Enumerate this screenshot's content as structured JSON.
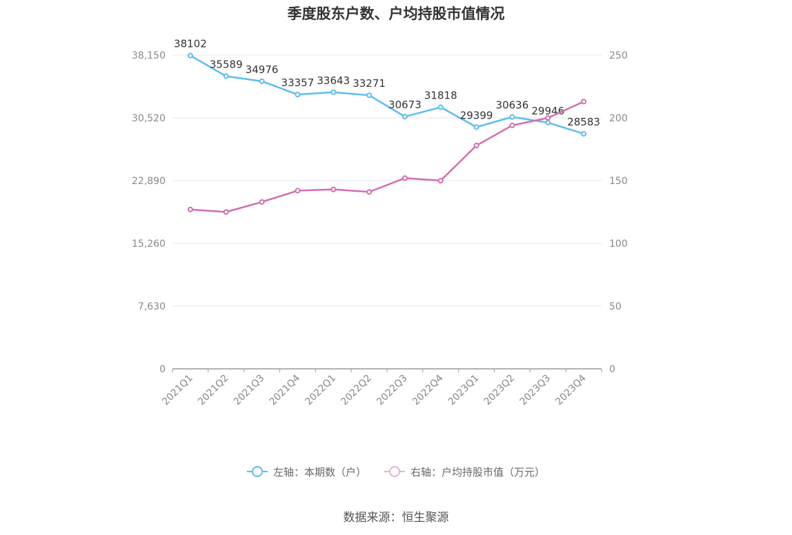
{
  "title": "季度股东户数、户均持股市值情况",
  "source": "数据来源：恒生聚源",
  "legend": {
    "left_label": "左轴：本期数（户）",
    "right_label": "右轴：户均持股市值（万元）"
  },
  "colors": {
    "left_series": "#5bbdf0",
    "right_series": "#d46bb0",
    "grid": "#dde6f2",
    "axis": "#999999",
    "tick_text": "#888888",
    "label_text": "#333333"
  },
  "chart_data": {
    "type": "line",
    "title": "季度股东户数、户均持股市值情况",
    "categories": [
      "2021Q1",
      "2021Q2",
      "2021Q3",
      "2021Q4",
      "2022Q1",
      "2022Q2",
      "2022Q3",
      "2022Q4",
      "2023Q1",
      "2023Q2",
      "2023Q3",
      "2023Q4"
    ],
    "left_axis": {
      "ylim": [
        0,
        38150
      ],
      "ticks": [
        "0",
        "7,630",
        "15,260",
        "22,890",
        "30,520",
        "38,150"
      ]
    },
    "right_axis": {
      "ylim": [
        0,
        250
      ],
      "ticks": [
        "0",
        "50",
        "100",
        "150",
        "200",
        "250"
      ]
    },
    "series": [
      {
        "name": "左轴：本期数（户）",
        "axis": "left",
        "values": [
          38102,
          35589,
          34976,
          33357,
          33643,
          33271,
          30673,
          31818,
          29399,
          30636,
          29946,
          28583
        ],
        "labels": [
          "38102",
          "35589",
          "34976",
          "33357",
          "33643",
          "33271",
          "30673",
          "31818",
          "29399",
          "30636",
          "29946",
          "28583"
        ]
      },
      {
        "name": "右轴：户均持股市值（万元）",
        "axis": "right",
        "values": [
          127,
          125,
          133,
          142,
          143,
          141,
          152,
          150,
          178,
          194,
          200,
          213
        ]
      }
    ],
    "grid": true,
    "legend_position": "bottom"
  }
}
